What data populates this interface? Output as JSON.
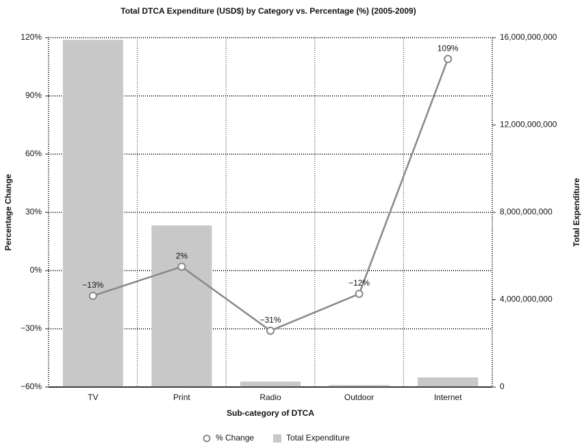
{
  "chart_data": {
    "type": "bar+line",
    "title": "Total DTCA Expenditure (USD$) by Category vs. Percentage (%) (2005-2009)",
    "x_label": "Sub-category of DTCA",
    "y_label": "Percentage Change",
    "y2_label": "Total Expenditure",
    "categories": [
      "TV",
      "Print",
      "Radio",
      "Outdoor",
      "Internet"
    ],
    "series": [
      {
        "name": "% Change",
        "type": "line",
        "color": "#888888",
        "values": [
          -13,
          2,
          -31,
          -12,
          109
        ],
        "value_labels": [
          "−13%",
          "2%",
          "−31%",
          "−12%",
          "109%"
        ]
      },
      {
        "name": "Total Expenditure",
        "type": "bar",
        "axis": "y2",
        "color": "#c8c8c8",
        "values": [
          15900000000,
          7400000000,
          250000000,
          90000000,
          440000000
        ]
      }
    ],
    "ylim": [
      -60,
      120
    ],
    "yticks": [
      {
        "value": -60,
        "label": "−60%"
      },
      {
        "value": -30,
        "label": "−30%"
      },
      {
        "value": 0,
        "label": "0%"
      },
      {
        "value": 30,
        "label": "30%"
      },
      {
        "value": 60,
        "label": "60%"
      },
      {
        "value": 90,
        "label": "90%"
      },
      {
        "value": 120,
        "label": "120%"
      }
    ],
    "y2lim": [
      0,
      16000000000
    ],
    "y2ticks": [
      0,
      {
        "value": 4000000000,
        "label": "4,000,000,000"
      },
      {
        "value": 8000000000,
        "label": "8,000,000,000"
      },
      {
        "value": 12000000000,
        "label": "12,000,000,000"
      },
      {
        "value": 16000000000,
        "label": "16,000,000,000"
      }
    ],
    "grid": true,
    "legend": "bottom"
  }
}
